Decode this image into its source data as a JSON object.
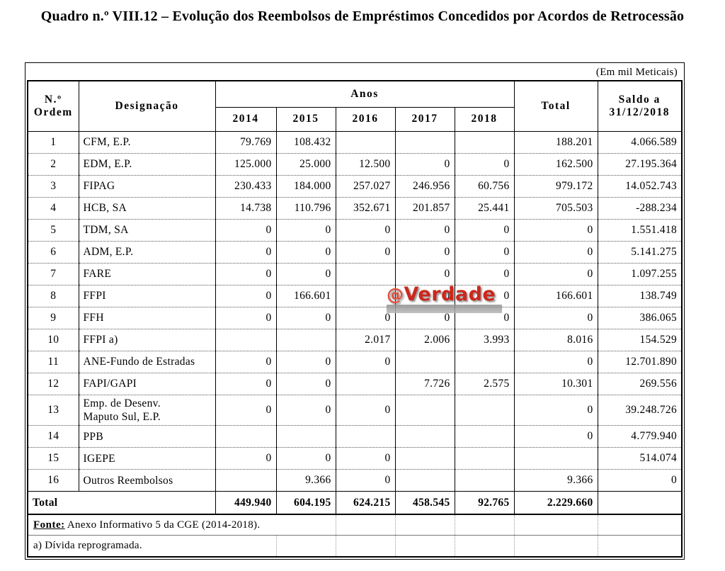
{
  "title": "Quadro n.º VIII.12 – Evolução dos Reembolsos de Empréstimos Concedidos por Acordos de Retrocessão",
  "unit_note": "(Em mil Meticais)",
  "colors": {
    "watermark_red": "#cc271d",
    "table_border": "#000000"
  },
  "watermark": {
    "prefix": "@",
    "text": "Verdade"
  },
  "table": {
    "headers": {
      "ordem_line1": "N.º",
      "ordem_line2": "Ordem",
      "designacao": "Designação",
      "anos_label": "Anos",
      "years": [
        "2014",
        "2015",
        "2016",
        "2017",
        "2018"
      ],
      "total": "Total",
      "saldo_line1": "Saldo a",
      "saldo_line2": "31/12/2018"
    },
    "rows": [
      {
        "ordem": "1",
        "designacao": "CFM, E.P.",
        "values": [
          "79.769",
          "108.432",
          "",
          "",
          ""
        ],
        "total": "188.201",
        "saldo": "4.066.589"
      },
      {
        "ordem": "2",
        "designacao": "EDM, E.P.",
        "values": [
          "125.000",
          "25.000",
          "12.500",
          "0",
          "0"
        ],
        "total": "162.500",
        "saldo": "27.195.364"
      },
      {
        "ordem": "3",
        "designacao": "FIPAG",
        "values": [
          "230.433",
          "184.000",
          "257.027",
          "246.956",
          "60.756"
        ],
        "total": "979.172",
        "saldo": "14.052.743"
      },
      {
        "ordem": "4",
        "designacao": "HCB, SA",
        "values": [
          "14.738",
          "110.796",
          "352.671",
          "201.857",
          "25.441"
        ],
        "total": "705.503",
        "saldo": "-288.234"
      },
      {
        "ordem": "5",
        "designacao": "TDM, SA",
        "values": [
          "0",
          "0",
          "0",
          "0",
          "0"
        ],
        "total": "0",
        "saldo": "1.551.418"
      },
      {
        "ordem": "6",
        "designacao": "ADM, E.P.",
        "values": [
          "0",
          "0",
          "0",
          "0",
          "0"
        ],
        "total": "0",
        "saldo": "5.141.275"
      },
      {
        "ordem": "7",
        "designacao": "FARE",
        "values": [
          "0",
          "0",
          "",
          "0",
          "0"
        ],
        "total": "0",
        "saldo": "1.097.255"
      },
      {
        "ordem": "8",
        "designacao": "FFPI",
        "values": [
          "0",
          "166.601",
          "",
          "0",
          "0"
        ],
        "total": "166.601",
        "saldo": "138.749"
      },
      {
        "ordem": "9",
        "designacao": "FFH",
        "values": [
          "0",
          "0",
          "0",
          "0",
          "0"
        ],
        "total": "0",
        "saldo": "386.065"
      },
      {
        "ordem": "10",
        "designacao": "FFPI a)",
        "values": [
          "",
          "",
          "2.017",
          "2.006",
          "3.993"
        ],
        "total": "8.016",
        "saldo": "154.529"
      },
      {
        "ordem": "11",
        "designacao": "ANE-Fundo de Estradas",
        "values": [
          "0",
          "0",
          "0",
          "",
          ""
        ],
        "total": "0",
        "saldo": "12.701.890"
      },
      {
        "ordem": "12",
        "designacao": "FAPI/GAPI",
        "values": [
          "0",
          "0",
          "",
          "7.726",
          "2.575"
        ],
        "total": "10.301",
        "saldo": "269.556"
      },
      {
        "ordem": "13",
        "designacao": "Emp. de Desenv.\nMaputo Sul, E.P.",
        "values": [
          "0",
          "0",
          "0",
          "",
          ""
        ],
        "total": "0",
        "saldo": "39.248.726"
      },
      {
        "ordem": "14",
        "designacao": "PPB",
        "values": [
          "",
          "",
          "",
          "",
          ""
        ],
        "total": "0",
        "saldo": "4.779.940"
      },
      {
        "ordem": "15",
        "designacao": "IGEPE",
        "values": [
          "0",
          "0",
          "0",
          "",
          ""
        ],
        "total": "",
        "saldo": "514.074"
      },
      {
        "ordem": "16",
        "designacao": "Outros Reembolsos",
        "values": [
          "",
          "9.366",
          "0",
          "",
          ""
        ],
        "total": "9.366",
        "saldo": "0"
      }
    ],
    "total_row": {
      "label": "Total",
      "values": [
        "449.940",
        "604.195",
        "624.215",
        "458.545",
        "92.765"
      ],
      "total": "2.229.660",
      "saldo": ""
    }
  },
  "footer": {
    "fonte_label": "Fonte:",
    "fonte_text": "Anexo Informativo 5 da CGE (2014-2018).",
    "note_a": "a) Dívida reprogramada."
  }
}
